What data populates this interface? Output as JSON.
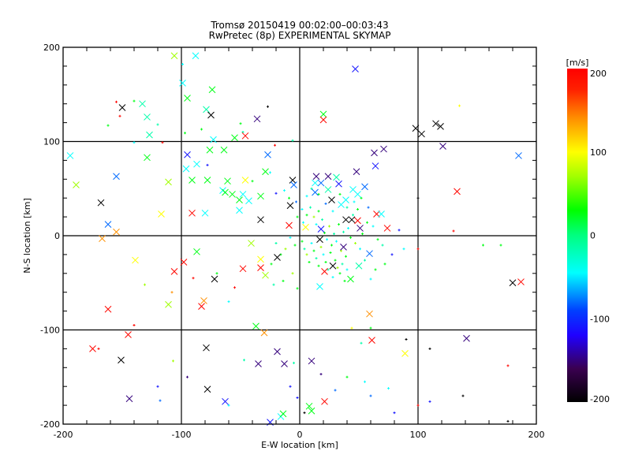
{
  "chart_data": {
    "type": "scatter",
    "title": "Tromsø 20150419 00:02:00–00:03:43",
    "subtitle": "RwPretec (8p) EXPERIMENTAL SKYMAP",
    "xlabel": "E-W location [km]",
    "ylabel": "N-S location [km]",
    "xlim": [
      -200,
      200
    ],
    "ylim": [
      -200,
      200
    ],
    "xticks": [
      "-200",
      "-100",
      "0",
      "100",
      "200"
    ],
    "yticks": [
      "-200",
      "-100",
      "0",
      "100",
      "200"
    ],
    "grid": true,
    "colorbar": {
      "label": "[m/s]",
      "range": [
        -200,
        200
      ],
      "ticks": [
        "200",
        "100",
        "0",
        "-100",
        "-200"
      ],
      "placement": "right",
      "colormap": [
        {
          "v": -200,
          "c": "#000000"
        },
        {
          "v": -160,
          "c": "#3a0050"
        },
        {
          "v": -120,
          "c": "#2000ff"
        },
        {
          "v": -90,
          "c": "#0040ff"
        },
        {
          "v": -45,
          "c": "#00ffff"
        },
        {
          "v": 0,
          "c": "#00ff80"
        },
        {
          "v": 30,
          "c": "#00ff00"
        },
        {
          "v": 70,
          "c": "#a0ff00"
        },
        {
          "v": 100,
          "c": "#ffff00"
        },
        {
          "v": 140,
          "c": "#ff9000"
        },
        {
          "v": 175,
          "c": "#ff2000"
        },
        {
          "v": 200,
          "c": "#ff0000"
        }
      ]
    },
    "point_fields": [
      "x_km",
      "y_km",
      "velocity_m_s"
    ],
    "crosses": [
      [
        -106,
        191,
        70
      ],
      [
        -88,
        191,
        -45
      ],
      [
        -99,
        162,
        -45
      ],
      [
        -74,
        155,
        25
      ],
      [
        -95,
        146,
        25
      ],
      [
        -79,
        134,
        -15
      ],
      [
        -75,
        128,
        -200
      ],
      [
        -36,
        124,
        -150
      ],
      [
        -46,
        106,
        195
      ],
      [
        -55,
        104,
        25
      ],
      [
        -150,
        136,
        -200
      ],
      [
        -133,
        140,
        -15
      ],
      [
        -129,
        126,
        -15
      ],
      [
        -127,
        107,
        -15
      ],
      [
        -73,
        102,
        -45
      ],
      [
        -76,
        91,
        25
      ],
      [
        -64,
        91,
        25
      ],
      [
        -95,
        86,
        -110
      ],
      [
        -27,
        86,
        -80
      ],
      [
        -194,
        85,
        -45
      ],
      [
        -129,
        83,
        25
      ],
      [
        -87,
        76,
        -45
      ],
      [
        -96,
        71,
        -45
      ],
      [
        -29,
        68,
        25
      ],
      [
        -155,
        63,
        -80
      ],
      [
        -189,
        54,
        70
      ],
      [
        -111,
        57,
        70
      ],
      [
        -91,
        59,
        25
      ],
      [
        -78,
        59,
        25
      ],
      [
        -61,
        58,
        25
      ],
      [
        -46,
        59,
        100
      ],
      [
        -6,
        59,
        -200
      ],
      [
        -5,
        54,
        -80
      ],
      [
        -65,
        48,
        -45
      ],
      [
        -63,
        46,
        25
      ],
      [
        -57,
        44,
        25
      ],
      [
        -48,
        44,
        -45
      ],
      [
        -33,
        42,
        25
      ],
      [
        -51,
        38,
        25
      ],
      [
        -43,
        37,
        -45
      ],
      [
        -168,
        35,
        -200
      ],
      [
        -8,
        32,
        -200
      ],
      [
        -117,
        23,
        100
      ],
      [
        -91,
        24,
        195
      ],
      [
        -80,
        24,
        -45
      ],
      [
        -51,
        27,
        -45
      ],
      [
        -162,
        12,
        -80
      ],
      [
        -33,
        17,
        -200
      ],
      [
        -9,
        11,
        195
      ],
      [
        -155,
        4,
        140
      ],
      [
        47,
        177,
        -110
      ],
      [
        20,
        129,
        25
      ],
      [
        20,
        123,
        195
      ],
      [
        98,
        114,
        -200
      ],
      [
        103,
        108,
        -200
      ],
      [
        115,
        119,
        -200
      ],
      [
        119,
        116,
        -200
      ],
      [
        121,
        95,
        -150
      ],
      [
        185,
        85,
        -80
      ],
      [
        133,
        47,
        195
      ],
      [
        63,
        88,
        -150
      ],
      [
        71,
        92,
        -150
      ],
      [
        64,
        74,
        -110
      ],
      [
        48,
        68,
        -150
      ],
      [
        14,
        63,
        -150
      ],
      [
        24,
        63,
        -150
      ],
      [
        31,
        62,
        -15
      ],
      [
        33,
        55,
        -110
      ],
      [
        55,
        52,
        -80
      ],
      [
        13,
        56,
        -45
      ],
      [
        18,
        56,
        -80
      ],
      [
        13,
        46,
        -80
      ],
      [
        24,
        49,
        -15
      ],
      [
        45,
        49,
        -45
      ],
      [
        49,
        44,
        -45
      ],
      [
        39,
        38,
        -45
      ],
      [
        65,
        23,
        195
      ],
      [
        69,
        23,
        -45
      ],
      [
        49,
        16,
        195
      ],
      [
        74,
        8,
        195
      ],
      [
        51,
        8,
        -150
      ],
      [
        44,
        17,
        -200
      ],
      [
        39,
        17,
        -200
      ],
      [
        18,
        7,
        -110
      ],
      [
        5,
        9,
        100
      ],
      [
        27,
        38,
        -200
      ],
      [
        35,
        33,
        -45
      ],
      [
        -167,
        -3,
        140
      ],
      [
        -139,
        -26,
        100
      ],
      [
        -106,
        -38,
        195
      ],
      [
        -162,
        -78,
        195
      ],
      [
        -111,
        -73,
        70
      ],
      [
        -98,
        -28,
        195
      ],
      [
        -145,
        -105,
        195
      ],
      [
        -175,
        -120,
        195
      ],
      [
        -151,
        -132,
        -200
      ],
      [
        -144,
        -173,
        -150
      ],
      [
        -87,
        -17,
        25
      ],
      [
        -72,
        -46,
        -200
      ],
      [
        -81,
        -69,
        140
      ],
      [
        -83,
        -75,
        195
      ],
      [
        -48,
        -35,
        195
      ],
      [
        -41,
        -8,
        70
      ],
      [
        -37,
        -96,
        25
      ],
      [
        -30,
        -103,
        140
      ],
      [
        -79,
        -119,
        -200
      ],
      [
        -78,
        -163,
        -200
      ],
      [
        -63,
        -176,
        -110
      ],
      [
        -35,
        -136,
        -150
      ],
      [
        -19,
        -123,
        -150
      ],
      [
        -13,
        -136,
        -150
      ],
      [
        -16,
        -192,
        -45
      ],
      [
        -14,
        -189,
        25
      ],
      [
        -25,
        -198,
        -110
      ],
      [
        -19,
        -23,
        -200
      ],
      [
        -33,
        -25,
        100
      ],
      [
        -33,
        -34,
        195
      ],
      [
        -29,
        -42,
        70
      ],
      [
        21,
        -38,
        195
      ],
      [
        28,
        -32,
        -200
      ],
      [
        17,
        -4,
        -200
      ],
      [
        37,
        -12,
        -150
      ],
      [
        59,
        -19,
        -80
      ],
      [
        50,
        -32,
        -15
      ],
      [
        59,
        -83,
        140
      ],
      [
        17,
        -54,
        -45
      ],
      [
        43,
        -46,
        25
      ],
      [
        180,
        -50,
        -200
      ],
      [
        187,
        -49,
        195
      ],
      [
        141,
        -109,
        -150
      ],
      [
        61,
        -111,
        195
      ],
      [
        89,
        -125,
        100
      ],
      [
        10,
        -133,
        -150
      ],
      [
        21,
        -176,
        195
      ],
      [
        8,
        -181,
        25
      ],
      [
        10,
        -186,
        25
      ]
    ],
    "dots": [
      [
        -155,
        142,
        195
      ],
      [
        -152,
        127,
        195
      ],
      [
        -140,
        143,
        25
      ],
      [
        -162,
        117,
        25
      ],
      [
        -140,
        99,
        -45
      ],
      [
        -97,
        109,
        25
      ],
      [
        -116,
        99,
        195
      ],
      [
        -83,
        113,
        25
      ],
      [
        -27,
        137,
        -200
      ],
      [
        -50,
        119,
        25
      ],
      [
        -99,
        182,
        -45
      ],
      [
        -120,
        118,
        -15
      ],
      [
        -78,
        75,
        -110
      ],
      [
        -48,
        110,
        -15
      ],
      [
        -21,
        96,
        195
      ],
      [
        -6,
        101,
        -15
      ],
      [
        -40,
        58,
        25
      ],
      [
        -25,
        67,
        -45
      ],
      [
        -20,
        45,
        -110
      ],
      [
        -13,
        48,
        -45
      ],
      [
        -9,
        40,
        25
      ],
      [
        -3,
        36,
        -80
      ],
      [
        2,
        28,
        -45
      ],
      [
        -2,
        20,
        25
      ],
      [
        3,
        14,
        -45
      ],
      [
        6,
        22,
        25
      ],
      [
        9,
        30,
        -15
      ],
      [
        12,
        20,
        70
      ],
      [
        14,
        12,
        -45
      ],
      [
        16,
        26,
        25
      ],
      [
        19,
        17,
        -15
      ],
      [
        21,
        3,
        25
      ],
      [
        23,
        -4,
        -45
      ],
      [
        25,
        10,
        70
      ],
      [
        27,
        -10,
        25
      ],
      [
        29,
        2,
        -15
      ],
      [
        31,
        -6,
        -45
      ],
      [
        33,
        12,
        25
      ],
      [
        35,
        -16,
        70
      ],
      [
        37,
        4,
        -15
      ],
      [
        39,
        -22,
        25
      ],
      [
        41,
        8,
        -45
      ],
      [
        43,
        -2,
        25
      ],
      [
        45,
        22,
        -15
      ],
      [
        47,
        -8,
        70
      ],
      [
        49,
        28,
        25
      ],
      [
        51,
        -14,
        -45
      ],
      [
        53,
        2,
        25
      ],
      [
        55,
        -26,
        -15
      ],
      [
        57,
        14,
        25
      ],
      [
        2,
        -6,
        25
      ],
      [
        4,
        -14,
        -15
      ],
      [
        6,
        -20,
        70
      ],
      [
        8,
        -28,
        25
      ],
      [
        10,
        -8,
        -45
      ],
      [
        12,
        -16,
        25
      ],
      [
        14,
        -24,
        -15
      ],
      [
        16,
        -32,
        25
      ],
      [
        18,
        -12,
        70
      ],
      [
        20,
        -20,
        -45
      ],
      [
        22,
        -28,
        25
      ],
      [
        24,
        -36,
        -15
      ],
      [
        26,
        -18,
        25
      ],
      [
        28,
        -44,
        -45
      ],
      [
        30,
        -26,
        25
      ],
      [
        32,
        -34,
        70
      ],
      [
        34,
        -40,
        25
      ],
      [
        36,
        -30,
        -15
      ],
      [
        38,
        -48,
        25
      ],
      [
        40,
        -36,
        -45
      ],
      [
        -4,
        -10,
        25
      ],
      [
        -8,
        -2,
        -45
      ],
      [
        -12,
        -14,
        70
      ],
      [
        -16,
        -20,
        25
      ],
      [
        -20,
        -8,
        -15
      ],
      [
        -24,
        -30,
        25
      ],
      [
        -6,
        -40,
        70
      ],
      [
        -14,
        -48,
        25
      ],
      [
        -22,
        -52,
        -15
      ],
      [
        -2,
        -56,
        25
      ],
      [
        6,
        42,
        -45
      ],
      [
        10,
        50,
        -15
      ],
      [
        16,
        44,
        25
      ],
      [
        22,
        34,
        -80
      ],
      [
        28,
        26,
        -45
      ],
      [
        34,
        44,
        25
      ],
      [
        40,
        30,
        -15
      ],
      [
        46,
        36,
        -45
      ],
      [
        52,
        40,
        25
      ],
      [
        58,
        30,
        -80
      ],
      [
        62,
        10,
        -45
      ],
      [
        66,
        -4,
        25
      ],
      [
        70,
        -10,
        -15
      ],
      [
        64,
        -36,
        25
      ],
      [
        60,
        -46,
        -45
      ],
      [
        72,
        -30,
        25
      ],
      [
        78,
        -20,
        -110
      ],
      [
        84,
        6,
        -110
      ],
      [
        88,
        -14,
        -45
      ],
      [
        100,
        40,
        -200
      ],
      [
        100,
        -14,
        195
      ],
      [
        110,
        -120,
        -200
      ],
      [
        60,
        -98,
        25
      ],
      [
        44,
        -98,
        100
      ],
      [
        52,
        -114,
        -15
      ],
      [
        40,
        -150,
        25
      ],
      [
        55,
        -155,
        -45
      ],
      [
        75,
        -162,
        -45
      ],
      [
        80,
        -188,
        -110
      ],
      [
        110,
        -176,
        -110
      ],
      [
        -5,
        -135,
        -15
      ],
      [
        -8,
        -160,
        -110
      ],
      [
        4,
        -188,
        -200
      ],
      [
        -2,
        -172,
        -110
      ],
      [
        30,
        -164,
        -80
      ],
      [
        18,
        -147,
        -150
      ],
      [
        -170,
        -120,
        195
      ],
      [
        -107,
        -133,
        70
      ],
      [
        -120,
        -160,
        -110
      ],
      [
        -118,
        -175,
        -80
      ],
      [
        -55,
        -55,
        195
      ],
      [
        -70,
        -40,
        25
      ],
      [
        -60,
        -70,
        -45
      ],
      [
        -90,
        -45,
        195
      ],
      [
        -131,
        -52,
        70
      ],
      [
        -108,
        -60,
        140
      ],
      [
        -140,
        -95,
        195
      ],
      [
        -95,
        -150,
        -150
      ],
      [
        -47,
        -132,
        -15
      ],
      [
        -60,
        -180,
        -45
      ],
      [
        130,
        5,
        195
      ],
      [
        155,
        -10,
        25
      ],
      [
        90,
        -110,
        -200
      ],
      [
        176,
        -138,
        195
      ],
      [
        176,
        -197,
        -200
      ],
      [
        138,
        -170,
        -200
      ],
      [
        135,
        138,
        100
      ],
      [
        170,
        -10,
        25
      ],
      [
        60,
        -170,
        -80
      ],
      [
        100,
        -180,
        195
      ]
    ]
  }
}
